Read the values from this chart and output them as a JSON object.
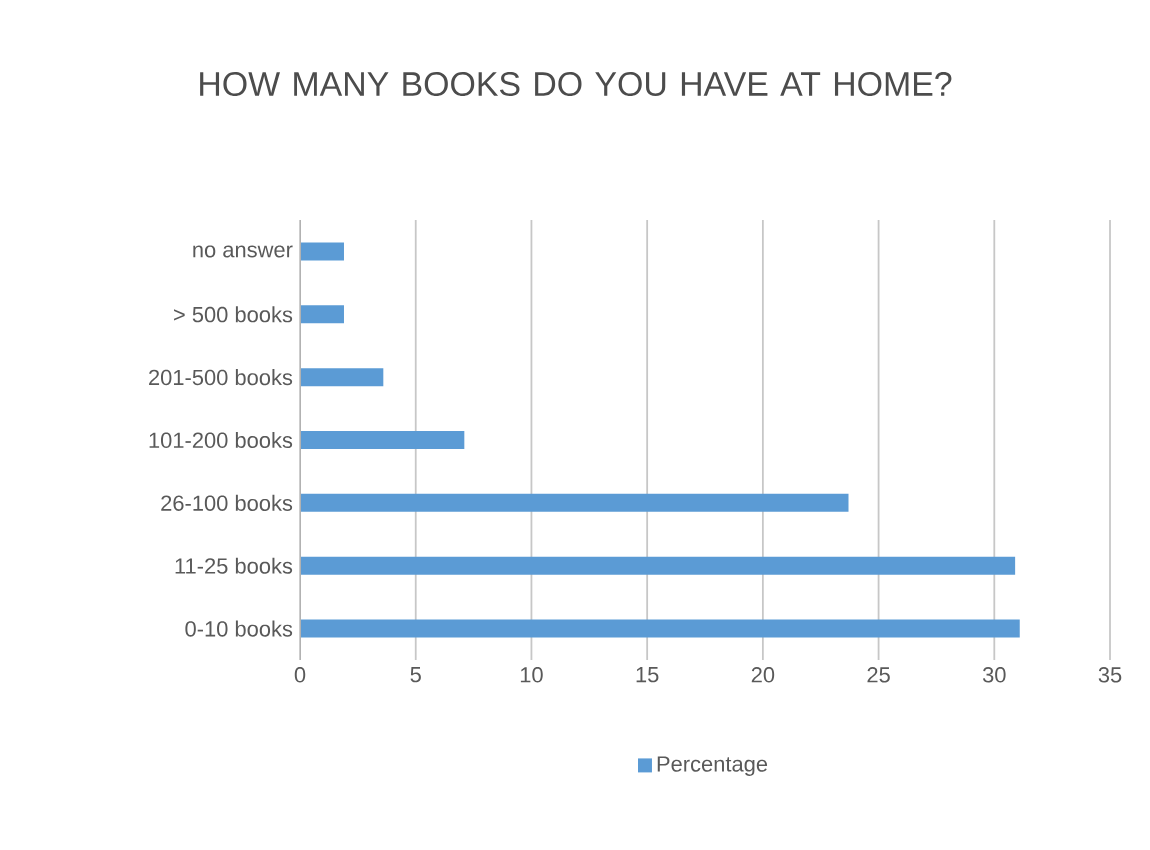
{
  "chart_data": {
    "type": "bar",
    "orientation": "horizontal",
    "title": "HOW MANY BOOKS DO YOU HAVE AT HOME?",
    "categories": [
      "no answer",
      "> 500 books",
      "201-500 books",
      "101-200 books",
      "26-100 books",
      "11-25 books",
      "0-10 books"
    ],
    "series": [
      {
        "name": "Percentage",
        "color": "#5b9bd5",
        "values": [
          1.9,
          1.9,
          3.6,
          7.1,
          23.7,
          30.9,
          31.1
        ]
      }
    ],
    "xlim": [
      0,
      35
    ],
    "xticks": [
      0,
      5,
      10,
      15,
      20,
      25,
      30,
      35
    ],
    "grid": "x",
    "legend": "bottom"
  }
}
